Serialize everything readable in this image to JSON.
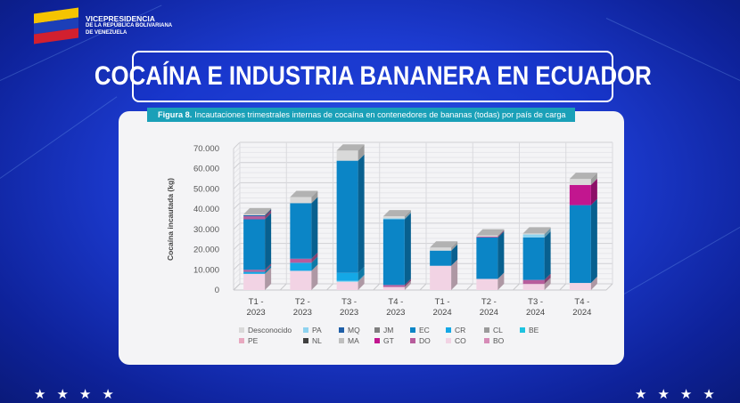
{
  "header": {
    "org_line1": "VICEPRESIDENCIA",
    "org_line2": "DE LA REPÚBLICA BOLIVARIANA",
    "org_line3": "DE VENEZUELA"
  },
  "slide_title": "COCAÍNA E INDUSTRIA BANANERA EN ECUADOR",
  "figure": {
    "label": "Figura 8.",
    "caption": "Incautaciones trimestrales internas de cocaína en contenedores de bananas (todas) por país de carga"
  },
  "stars": {
    "left": "★★★★",
    "right": "★★★★"
  },
  "chart_data": {
    "type": "bar",
    "stacked": true,
    "title": "Incautaciones trimestrales internas de cocaína en contenedores de bananas (todas) por país de carga",
    "xlabel": "",
    "ylabel": "Cocaína incautada (kg)",
    "ylim": [
      0,
      70000
    ],
    "yticks": [
      0,
      10000,
      20000,
      30000,
      40000,
      50000,
      60000,
      70000
    ],
    "ytick_labels": [
      "0",
      "10.000",
      "20.000",
      "30.000",
      "40.000",
      "50.000",
      "60.000",
      "70.000"
    ],
    "categories": [
      [
        "T1 -",
        "2023"
      ],
      [
        "T2 -",
        "2023"
      ],
      [
        "T3 -",
        "2023"
      ],
      [
        "T4 -",
        "2023"
      ],
      [
        "T1 -",
        "2024"
      ],
      [
        "T2 -",
        "2024"
      ],
      [
        "T3 -",
        "2024"
      ],
      [
        "T4 -",
        "2024"
      ]
    ],
    "grid": true,
    "legend_position": "bottom",
    "legend": [
      "Desconocido",
      "PA",
      "MQ",
      "JM",
      "EC",
      "CR",
      "CL",
      "BE",
      "PE",
      "NL",
      "MA",
      "GT",
      "DO",
      "CO",
      "BO"
    ],
    "colors": {
      "Desconocido": "#d9d9d9",
      "PA": "#8fd3ef",
      "MQ": "#1f5fa8",
      "JM": "#7f7f7f",
      "EC": "#0b85c6",
      "CR": "#14a8e6",
      "CL": "#9a9a9a",
      "BE": "#1ec3e0",
      "PE": "#e8a9c0",
      "NL": "#404040",
      "MA": "#bfbfbf",
      "GT": "#c2168f",
      "DO": "#b75d9c",
      "CO": "#f2d3e4",
      "BO": "#d68bb7"
    },
    "stack_order": [
      "CO",
      "PA",
      "CR",
      "DO",
      "EC",
      "GT",
      "MQ",
      "Desconocido"
    ],
    "series": [
      {
        "name": "CO",
        "values": [
          8000,
          9500,
          4000,
          1500,
          12000,
          5500,
          3000,
          3500
        ]
      },
      {
        "name": "PA",
        "values": [
          0,
          0,
          500,
          0,
          0,
          0,
          0,
          0
        ]
      },
      {
        "name": "CR",
        "values": [
          1000,
          4000,
          4000,
          0,
          0,
          0,
          0,
          0
        ]
      },
      {
        "name": "DO",
        "values": [
          1000,
          2000,
          0,
          1000,
          0,
          0,
          2000,
          0
        ]
      },
      {
        "name": "EC",
        "values": [
          25000,
          27500,
          55500,
          32500,
          7500,
          20500,
          21000,
          38500
        ]
      },
      {
        "name": "GT",
        "values": [
          0,
          0,
          0,
          0,
          0,
          0,
          0,
          10000
        ]
      },
      {
        "name": "DO2",
        "label": "DO",
        "values": [
          1500,
          0,
          0,
          0,
          0,
          500,
          0,
          0
        ]
      },
      {
        "name": "MQ",
        "values": [
          500,
          0,
          0,
          0,
          0,
          0,
          0,
          0
        ]
      },
      {
        "name": "PA2",
        "label": "PA",
        "values": [
          0,
          0,
          0,
          500,
          0,
          0,
          1500,
          0
        ]
      },
      {
        "name": "Desconocido",
        "values": [
          500,
          3000,
          5000,
          1000,
          1500,
          500,
          500,
          3000
        ]
      }
    ]
  }
}
